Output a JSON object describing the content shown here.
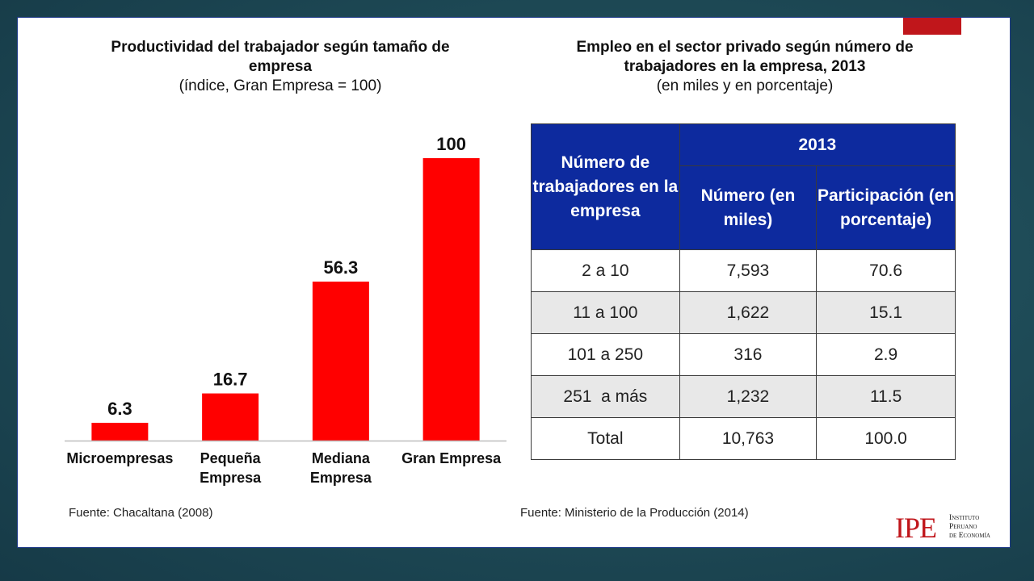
{
  "left": {
    "title": "Productividad del trabajador según tamaño de empresa",
    "subtitle": "(índice, Gran Empresa = 100)",
    "source": "Fuente: Chacaltana (2008)"
  },
  "right": {
    "title": "Empleo en el sector privado según número de trabajadores en la empresa, 2013",
    "subtitle": "(en miles y en porcentaje)",
    "source": "Fuente: Ministerio de la Producción (2014)",
    "table": {
      "row_header": "Número de trabajadores en la empresa",
      "year_header": "2013",
      "col_numero": "Número (en miles)",
      "col_participacion": "Participación (en porcentaje)",
      "rows": [
        {
          "label": "2 a 10",
          "numero": "7,593",
          "participacion": "70.6"
        },
        {
          "label": "11 a 100",
          "numero": "1,622",
          "participacion": "15.1"
        },
        {
          "label": "101 a 250",
          "numero": "316",
          "participacion": "2.9"
        },
        {
          "label": "251  a más",
          "numero": "1,232",
          "participacion": "11.5"
        },
        {
          "label": "Total",
          "numero": "10,763",
          "participacion": "100.0"
        }
      ]
    }
  },
  "chart_data": [
    {
      "type": "bar",
      "title": "Productividad del trabajador según tamaño de empresa",
      "subtitle": "(índice, Gran Empresa = 100)",
      "categories": [
        "Microempresas",
        "Pequeña Empresa",
        "Mediana Empresa",
        "Gran Empresa"
      ],
      "values": [
        6.3,
        16.7,
        56.3,
        100
      ],
      "value_labels": [
        "6.3",
        "16.7",
        "56.3",
        "100"
      ],
      "bar_color": "#ff0000",
      "ylim": [
        0,
        100
      ],
      "grid": false,
      "xlabel": "",
      "ylabel": ""
    },
    {
      "type": "table",
      "title": "Empleo en el sector privado según número de trabajadores en la empresa, 2013",
      "subtitle": "(en miles y en porcentaje)",
      "columns": [
        "Número de trabajadores en la empresa",
        "Número (en miles)",
        "Participación (en porcentaje)"
      ],
      "rows": [
        [
          "2 a 10",
          7593,
          70.6
        ],
        [
          "11 a 100",
          1622,
          15.1
        ],
        [
          "101 a 250",
          316,
          2.9
        ],
        [
          "251  a más",
          1232,
          11.5
        ],
        [
          "Total",
          10763,
          100.0
        ]
      ]
    }
  ],
  "logo": {
    "letters": "IPE",
    "name_lines": [
      "Instituto",
      "Peruano",
      "de Economía"
    ]
  },
  "colors": {
    "bar": "#ff0000",
    "table_header": "#0d2a9e",
    "accent": "#c0161b"
  }
}
